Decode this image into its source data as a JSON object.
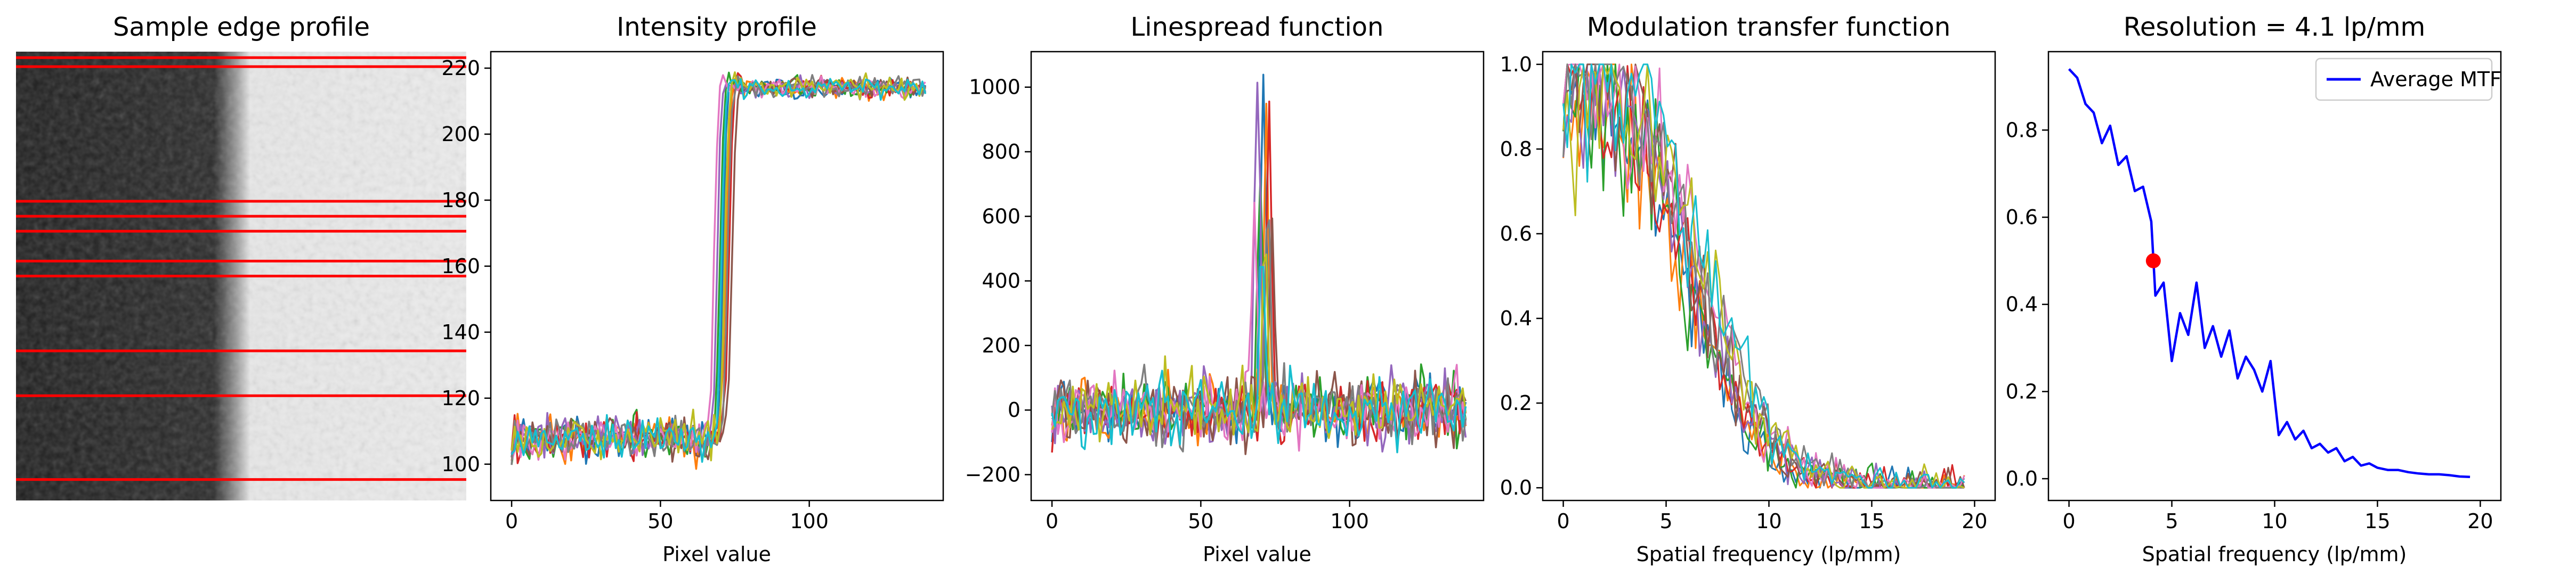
{
  "colors": {
    "series": [
      "#1f77b4",
      "#ff7f0e",
      "#2ca02c",
      "#d62728",
      "#9467bd",
      "#8c564b",
      "#e377c2",
      "#7f7f7f",
      "#bcbd22",
      "#17becf"
    ],
    "edge_lines": "#ff0000",
    "average_mtf": "#0000ff",
    "resolution_marker": "#ff0000"
  },
  "chart_data": [
    {
      "type": "image",
      "title": "Sample edge profile",
      "edge_line_rows": [
        2,
        5,
        50,
        55,
        60,
        70,
        75,
        100,
        115,
        143
      ],
      "image_rows": 150
    },
    {
      "type": "line",
      "title": "Intensity profile",
      "xlabel": "Pixel value",
      "ylabel": "",
      "xlim": [
        -7,
        145
      ],
      "ylim": [
        89,
        225
      ],
      "xticks": [
        "0",
        "50",
        "100"
      ],
      "xtick_values": [
        0,
        50,
        100
      ],
      "yticks": [
        "100",
        "120",
        "140",
        "160",
        "180",
        "200",
        "220"
      ],
      "ytick_values": [
        100,
        120,
        140,
        160,
        180,
        200,
        220
      ],
      "n_series": 10,
      "x_range": [
        0,
        139
      ],
      "low_level": 108,
      "high_level": 214,
      "edge_centers": [
        71,
        72,
        70,
        73,
        69,
        74,
        68,
        72.5,
        71.5,
        70.5
      ]
    },
    {
      "type": "line",
      "title": "Linespread function",
      "xlabel": "Pixel value",
      "ylabel": "",
      "xlim": [
        -7,
        145
      ],
      "ylim": [
        -280,
        1110
      ],
      "xticks": [
        "0",
        "50",
        "100"
      ],
      "xtick_values": [
        0,
        50,
        100
      ],
      "yticks": [
        "−200",
        "0",
        "200",
        "400",
        "600",
        "800",
        "1000"
      ],
      "ytick_values": [
        -200,
        0,
        200,
        400,
        600,
        800,
        1000
      ],
      "n_series": 10,
      "x_range": [
        0,
        139
      ],
      "peak_values": [
        1040,
        900,
        780,
        1000,
        1030,
        600,
        720,
        650,
        540,
        480
      ]
    },
    {
      "type": "line",
      "title": "Modulation transfer function",
      "xlabel": "Spatial frequency (lp/mm)",
      "ylabel": "",
      "xlim": [
        -1,
        21
      ],
      "ylim": [
        -0.03,
        1.03
      ],
      "xticks": [
        "0",
        "5",
        "10",
        "15",
        "20"
      ],
      "xtick_values": [
        0,
        5,
        10,
        15,
        20
      ],
      "yticks": [
        "0.0",
        "0.2",
        "0.4",
        "0.6",
        "0.8",
        "1.0"
      ],
      "ytick_values": [
        0,
        0.2,
        0.4,
        0.6,
        0.8,
        1.0
      ],
      "n_series": 10,
      "x_range": [
        0,
        19.5
      ]
    },
    {
      "type": "line",
      "title": "Resolution = 4.1 lp/mm",
      "xlabel": "Spatial frequency (lp/mm)",
      "ylabel": "",
      "xlim": [
        -1,
        21
      ],
      "ylim": [
        -0.05,
        0.98
      ],
      "xticks": [
        "0",
        "5",
        "10",
        "15",
        "20"
      ],
      "xtick_values": [
        0,
        5,
        10,
        15,
        20
      ],
      "yticks": [
        "0.0",
        "0.2",
        "0.4",
        "0.6",
        "0.8"
      ],
      "ytick_values": [
        0,
        0.2,
        0.4,
        0.6,
        0.8
      ],
      "legend": {
        "label": "Average MTF",
        "position": "upper right"
      },
      "series": [
        {
          "name": "Average MTF",
          "x": [
            0,
            0.4,
            0.8,
            1.2,
            1.6,
            2.0,
            2.4,
            2.8,
            3.2,
            3.6,
            4.0,
            4.2,
            4.6,
            5.0,
            5.4,
            5.8,
            6.2,
            6.6,
            7.0,
            7.4,
            7.8,
            8.2,
            8.6,
            9.0,
            9.4,
            9.8,
            10.2,
            10.6,
            11.0,
            11.4,
            11.8,
            12.2,
            12.6,
            13.0,
            13.4,
            13.8,
            14.2,
            14.6,
            15.0,
            15.5,
            16.0,
            16.5,
            17.0,
            17.5,
            18.0,
            18.5,
            19.0,
            19.5
          ],
          "y": [
            0.94,
            0.92,
            0.86,
            0.84,
            0.77,
            0.81,
            0.72,
            0.74,
            0.66,
            0.67,
            0.59,
            0.42,
            0.45,
            0.27,
            0.38,
            0.33,
            0.45,
            0.3,
            0.35,
            0.28,
            0.34,
            0.23,
            0.28,
            0.25,
            0.2,
            0.27,
            0.1,
            0.13,
            0.09,
            0.11,
            0.07,
            0.08,
            0.06,
            0.07,
            0.04,
            0.05,
            0.03,
            0.035,
            0.025,
            0.02,
            0.02,
            0.015,
            0.012,
            0.01,
            0.01,
            0.008,
            0.005,
            0.004
          ]
        }
      ],
      "resolution_point": {
        "x": 4.1,
        "y": 0.5
      }
    }
  ]
}
